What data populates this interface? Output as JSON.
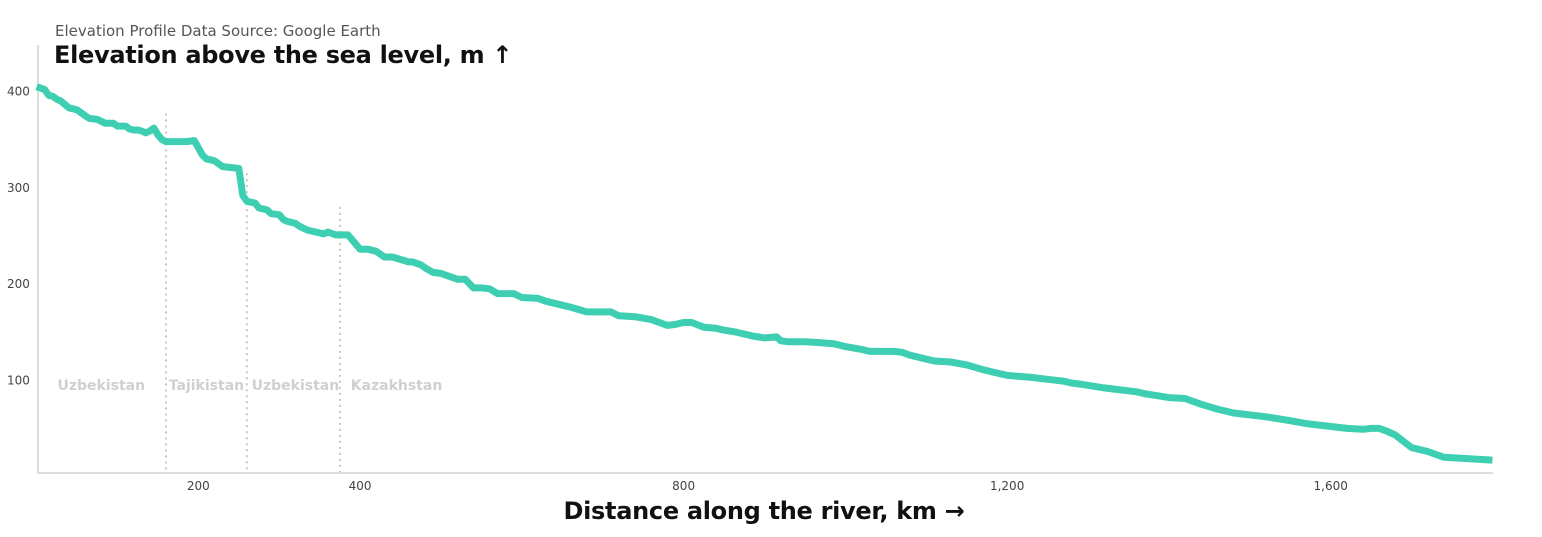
{
  "source_note": "Elevation Profile Data Source: Google Earth",
  "colors": {
    "line": "#3ecfb2",
    "axis": "#dddddd",
    "boundary": "#c8c8c8",
    "region_label": "#d0d0d0"
  },
  "chart_data": {
    "type": "line",
    "title": "",
    "ylabel": "Elevation above the sea level, m ↑",
    "xlabel": "Distance along the river, km →",
    "xlim": [
      0,
      1800
    ],
    "ylim": [
      0,
      400
    ],
    "x_ticks": [
      200,
      400,
      800,
      1200,
      1600
    ],
    "x_tick_labels": [
      "200",
      "400",
      "800",
      "1,200",
      "1,600"
    ],
    "y_ticks": [
      100,
      200,
      300,
      400
    ],
    "y_tick_labels": [
      "100",
      "200",
      "300",
      "400"
    ],
    "grid": false,
    "boundaries": [
      160,
      260,
      375
    ],
    "regions": [
      {
        "name": "Uzbekistan",
        "x": 80
      },
      {
        "name": "Tajikistan",
        "x": 210
      },
      {
        "name": "Uzbekistan",
        "x": 320
      },
      {
        "name": "Kazakhstan",
        "x": 445
      }
    ],
    "series": [
      {
        "x": [
          0,
          10,
          15,
          20,
          25,
          30,
          40,
          45,
          50,
          60,
          65,
          75,
          85,
          95,
          100,
          110,
          115,
          120,
          125,
          130,
          135,
          140,
          145,
          150,
          155,
          160,
          165,
          175,
          185,
          195,
          205,
          210,
          215,
          220,
          230,
          240,
          250,
          255,
          260,
          265,
          270,
          275,
          285,
          290,
          300,
          305,
          310,
          320,
          325,
          335,
          345,
          355,
          360,
          370,
          375,
          385,
          400,
          410,
          420,
          430,
          440,
          460,
          465,
          475,
          480,
          490,
          500,
          510,
          520,
          530,
          540,
          550,
          560,
          570,
          590,
          600,
          620,
          630,
          650,
          660,
          680,
          710,
          720,
          740,
          760,
          770,
          780,
          790,
          800,
          810,
          825,
          840,
          850,
          865,
          880,
          885,
          900,
          915,
          920,
          930,
          950,
          970,
          985,
          990,
          1000,
          1020,
          1030,
          1060,
          1070,
          1080,
          1100,
          1110,
          1130,
          1150,
          1170,
          1180,
          1200,
          1230,
          1250,
          1270,
          1280,
          1290,
          1320,
          1340,
          1360,
          1370,
          1400,
          1420,
          1440,
          1460,
          1480,
          1520,
          1550,
          1570,
          1590,
          1620,
          1640,
          1650,
          1660,
          1670,
          1680,
          1700,
          1720,
          1740,
          1800
        ],
        "values": [
          405,
          402,
          396,
          395,
          392,
          390,
          383,
          382,
          381,
          375,
          372,
          371,
          367,
          367,
          364,
          364,
          361,
          360,
          360,
          359,
          357,
          359,
          362,
          355,
          350,
          348,
          348,
          348,
          348,
          349,
          334,
          330,
          329,
          328,
          322,
          321,
          320,
          292,
          286,
          285,
          284,
          279,
          277,
          273,
          272,
          267,
          265,
          263,
          260,
          256,
          254,
          252,
          254,
          251,
          251,
          251,
          236,
          236,
          234,
          228,
          228,
          223,
          223,
          220,
          217,
          212,
          211,
          208,
          205,
          205,
          196,
          196,
          195,
          190,
          190,
          186,
          185,
          182,
          178,
          176,
          171,
          171,
          167,
          166,
          163,
          160,
          157,
          158,
          160,
          160,
          155,
          154,
          152,
          150,
          147,
          146,
          144,
          145,
          141,
          140,
          140,
          139,
          138,
          137,
          135,
          132,
          130,
          130,
          129,
          126,
          122,
          120,
          119,
          116,
          111,
          109,
          105,
          103,
          101,
          99,
          97,
          96,
          92,
          90,
          88,
          86,
          82,
          81,
          75,
          70,
          66,
          62,
          58,
          55,
          53,
          50,
          49,
          50,
          50,
          47,
          43,
          30,
          26,
          20,
          17
        ]
      }
    ]
  }
}
